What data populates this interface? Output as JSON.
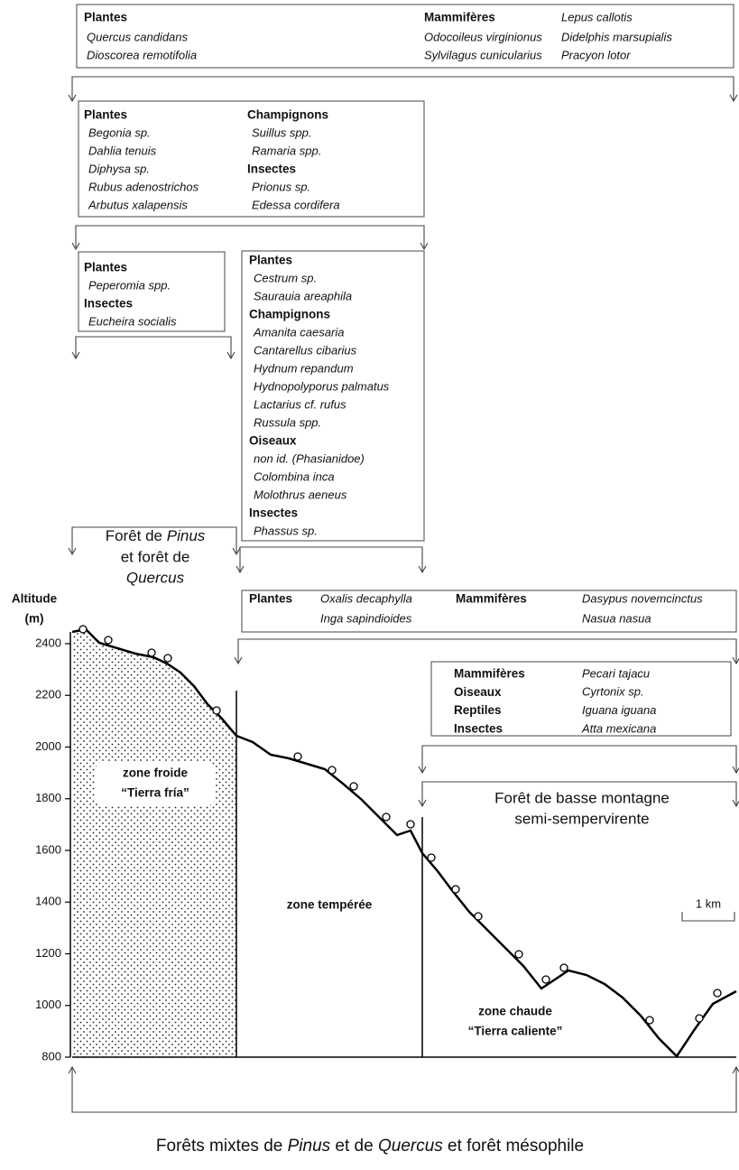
{
  "box_1": {
    "groups": [
      {
        "heading": "Plantes",
        "species": [
          "Quercus candidans",
          "Dioscorea remotifolia"
        ]
      },
      {
        "heading": "Mammifères",
        "species": [
          "Odocoileus virginionus",
          "Sylvilagus cunicularius",
          "Lepus callotis",
          "Didelphis marsupialis",
          "Pracyon lotor"
        ]
      }
    ]
  },
  "box_2": {
    "groups": [
      {
        "heading": "Plantes",
        "species": [
          "Begonia sp.",
          "Dahlia tenuis",
          "Diphysa sp.",
          "Rubus adenostrichos",
          "Arbutus xalapensis"
        ]
      },
      {
        "heading": "Champignons",
        "species": [
          "Suillus spp.",
          "Ramaria spp."
        ]
      },
      {
        "heading": "Insectes",
        "species": [
          "Prionus sp.",
          "Edessa cordifera"
        ]
      }
    ]
  },
  "box_3": {
    "groups": [
      {
        "heading": "Plantes",
        "species": [
          "Peperomia spp."
        ]
      },
      {
        "heading": "Insectes",
        "species": [
          "Eucheira socialis"
        ]
      }
    ]
  },
  "box_4": {
    "groups": [
      {
        "heading": "Plantes",
        "species": [
          "Cestrum sp.",
          "Saurauia areaphila"
        ]
      },
      {
        "heading": "Champignons",
        "species": [
          "Amanita caesaria",
          "Cantarellus cibarius",
          "Hydnum repandum",
          "Hydnopolyporus palmatus",
          "Lactarius cf. rufus",
          "Russula spp."
        ]
      },
      {
        "heading": "Oiseaux",
        "species": [
          "non id. (Phasianidoe)",
          "Colombina inca",
          "Molothrus aeneus"
        ]
      },
      {
        "heading": "Insectes",
        "species": [
          "Phassus sp."
        ]
      }
    ]
  },
  "box_5": {
    "groups": [
      {
        "heading": "Plantes",
        "species": [
          "Oxalis decaphylla",
          "Inga sapindioides"
        ]
      },
      {
        "heading": "Mammifères",
        "species": [
          "Dasypus novemcinctus",
          "Nasua nasua"
        ]
      }
    ]
  },
  "box_6": {
    "groups": [
      {
        "heading": "Mammifères",
        "species": [
          "Pecari tajacu"
        ]
      },
      {
        "heading": "Oiseaux",
        "species": [
          "Cyrtonix sp."
        ]
      },
      {
        "heading": "Reptiles",
        "species": [
          "Iguana iguana"
        ]
      },
      {
        "heading": "Insectes",
        "species": [
          "Atta mexicana"
        ]
      }
    ]
  },
  "forest_labels": {
    "pinus_quercus": [
      "Forêt de ",
      "Pinus",
      "et forêt de",
      "Quercus"
    ],
    "basse_montagne": [
      "Forêt de basse montagne",
      "semi-sempervirente"
    ],
    "mixtes": [
      "Forêts mixtes de ",
      "Pinus",
      " et de ",
      "Quercus",
      " et forêt mésophile"
    ]
  },
  "zones": [
    [
      "zone froide",
      "“Tierra fría”"
    ],
    [
      "zone tempérée"
    ],
    [
      "zone chaude",
      "“Tierra caliente”"
    ]
  ],
  "altitude_axis": {
    "label": "Altitude",
    "unit": "(m)",
    "ticks": [
      2400,
      2200,
      2000,
      1800,
      1600,
      1400,
      1200,
      1000,
      800
    ]
  },
  "scale": "1 km"
}
